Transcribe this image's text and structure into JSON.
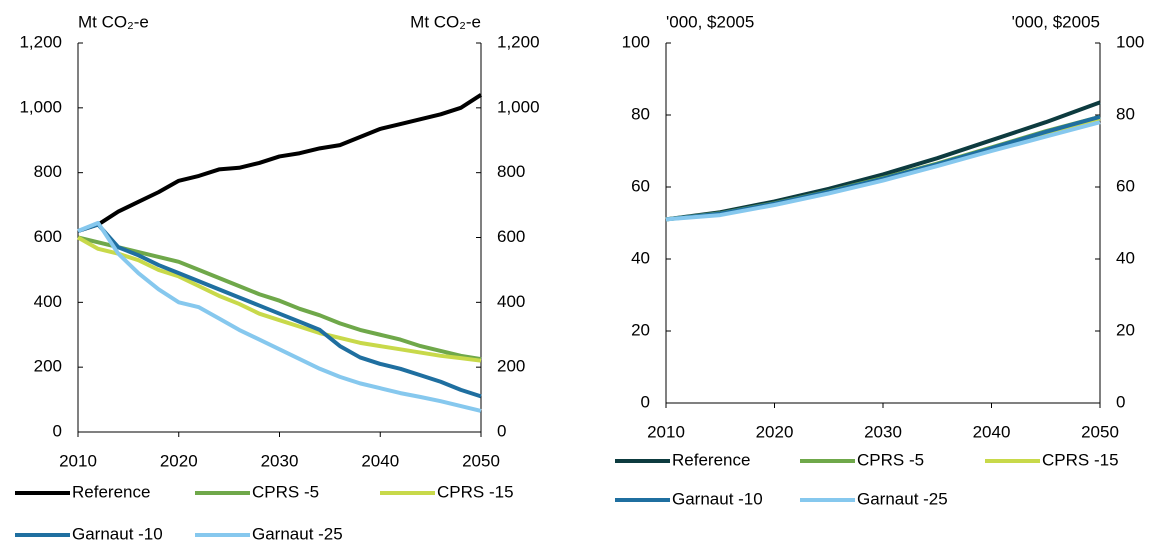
{
  "chart_data": [
    {
      "type": "line",
      "y_label": "Mt CO₂-e",
      "y2_label": "Mt CO₂-e",
      "x": [
        2010,
        2012,
        2014,
        2016,
        2018,
        2020,
        2022,
        2024,
        2026,
        2028,
        2030,
        2032,
        2034,
        2036,
        2038,
        2040,
        2042,
        2044,
        2046,
        2048,
        2050
      ],
      "xlim": [
        2010,
        2050
      ],
      "xticks": [
        2010,
        2020,
        2030,
        2040,
        2050
      ],
      "ylim": [
        0,
        1200
      ],
      "yticks": [
        0,
        200,
        400,
        600,
        800,
        {
          "value": 1000,
          "label": "1,000"
        },
        {
          "value": 1200,
          "label": "1,200"
        }
      ],
      "series": [
        {
          "name": "Reference",
          "color": "#000000",
          "values": [
            620,
            640,
            680,
            710,
            740,
            775,
            790,
            810,
            815,
            830,
            850,
            860,
            875,
            885,
            910,
            935,
            950,
            965,
            980,
            1000,
            1040
          ]
        },
        {
          "name": "CPRS -5",
          "color": "#6fa84a",
          "values": [
            600,
            585,
            570,
            555,
            540,
            525,
            500,
            475,
            450,
            425,
            405,
            380,
            360,
            335,
            315,
            300,
            285,
            265,
            250,
            235,
            225
          ]
        },
        {
          "name": "CPRS -15",
          "color": "#c8d94a",
          "values": [
            600,
            565,
            550,
            530,
            500,
            480,
            450,
            420,
            395,
            365,
            345,
            325,
            305,
            290,
            275,
            265,
            255,
            245,
            235,
            228,
            220
          ]
        },
        {
          "name": "Garnaut -10",
          "color": "#1f6fa0",
          "values": [
            620,
            640,
            570,
            545,
            515,
            490,
            465,
            440,
            415,
            390,
            365,
            340,
            315,
            265,
            230,
            210,
            195,
            175,
            155,
            130,
            110
          ]
        },
        {
          "name": "Garnaut -25",
          "color": "#86c8ee",
          "values": [
            620,
            645,
            550,
            490,
            440,
            400,
            385,
            350,
            315,
            285,
            255,
            225,
            195,
            170,
            150,
            135,
            120,
            108,
            95,
            80,
            65
          ]
        }
      ]
    },
    {
      "type": "line",
      "y_label": "'000, $2005",
      "y2_label": "'000, $2005",
      "x": [
        2010,
        2015,
        2020,
        2025,
        2030,
        2035,
        2040,
        2045,
        2050
      ],
      "xlim": [
        2010,
        2050
      ],
      "xticks": [
        2010,
        2020,
        2030,
        2040,
        2050
      ],
      "ylim": [
        0,
        100
      ],
      "yticks": [
        0,
        20,
        40,
        60,
        80,
        100
      ],
      "series": [
        {
          "name": "Reference",
          "color": "#0d3b3f",
          "values": [
            51,
            53,
            56,
            59.5,
            63.5,
            68,
            73,
            78,
            83.5
          ]
        },
        {
          "name": "CPRS -5",
          "color": "#6fa84a",
          "values": [
            51,
            52.7,
            55.5,
            58.8,
            62.5,
            66.5,
            71,
            75.5,
            79.5
          ]
        },
        {
          "name": "CPRS -15",
          "color": "#c8d94a",
          "values": [
            51,
            52.5,
            55.3,
            58.5,
            62,
            66,
            70.5,
            75,
            79
          ]
        },
        {
          "name": "Garnaut -10",
          "color": "#1f6fa0",
          "values": [
            51,
            52.6,
            55.4,
            58.7,
            62.3,
            66.3,
            70.8,
            75.3,
            79.5
          ]
        },
        {
          "name": "Garnaut -25",
          "color": "#86c8ee",
          "values": [
            51,
            52.2,
            55,
            58.2,
            61.8,
            65.8,
            70,
            74,
            78
          ]
        }
      ]
    }
  ]
}
